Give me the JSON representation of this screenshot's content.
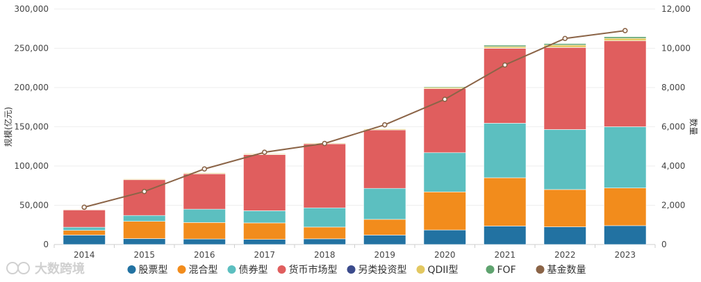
{
  "chart_data": {
    "type": "bar",
    "stacked": true,
    "categories": [
      "2014",
      "2015",
      "2016",
      "2017",
      "2018",
      "2019",
      "2020",
      "2021",
      "2022",
      "2023"
    ],
    "series": [
      {
        "name": "股票型",
        "color": "#2272a2",
        "values": [
          12000,
          7500,
          7000,
          6500,
          7200,
          12000,
          18500,
          23500,
          22500,
          24000
        ]
      },
      {
        "name": "混合型",
        "color": "#f28c1c",
        "values": [
          6000,
          22000,
          21000,
          21000,
          15000,
          20000,
          48500,
          61500,
          47500,
          48000
        ]
      },
      {
        "name": "债券型",
        "color": "#5cbfc0",
        "values": [
          4000,
          7500,
          17000,
          15500,
          24500,
          39500,
          50000,
          69500,
          76500,
          78000
        ]
      },
      {
        "name": "货币市场型",
        "color": "#e05e5e",
        "values": [
          22000,
          45500,
          45000,
          71500,
          81500,
          74500,
          81500,
          95500,
          104500,
          109500
        ]
      },
      {
        "name": "另类投资型",
        "color": "#3b4b8c",
        "values": [
          150,
          200,
          200,
          200,
          150,
          150,
          150,
          150,
          150,
          150
        ]
      },
      {
        "name": "QDII型",
        "color": "#e3c861",
        "values": [
          600,
          900,
          1000,
          1000,
          1000,
          1200,
          1500,
          2000,
          3000,
          3000
        ]
      },
      {
        "name": "FOF",
        "color": "#5fa36f",
        "values": [
          0,
          0,
          0,
          100,
          300,
          500,
          1000,
          1800,
          1800,
          2000
        ]
      }
    ],
    "line": {
      "name": "基金数量",
      "color": "#8b6447",
      "values": [
        1900,
        2700,
        3850,
        4700,
        5150,
        6100,
        7400,
        9150,
        10500,
        10900
      ]
    },
    "ylabel": "规模(亿元)",
    "y2label": "数量",
    "ylim": [
      0,
      300000
    ],
    "y2lim": [
      0,
      12000
    ],
    "yticks": [
      "0",
      "50,000",
      "100,000",
      "150,000",
      "200,000",
      "250,000",
      "300,000"
    ],
    "y2ticks": [
      "0",
      "2,000",
      "4,000",
      "6,000",
      "8,000",
      "10,000",
      "12,000"
    ],
    "legend": [
      "股票型",
      "混合型",
      "债券型",
      "货币市场型",
      "另类投资型",
      "QDII型",
      "FOF",
      "基金数量"
    ],
    "legend_position": "bottom",
    "grid": true
  },
  "watermark": "大数跨境"
}
